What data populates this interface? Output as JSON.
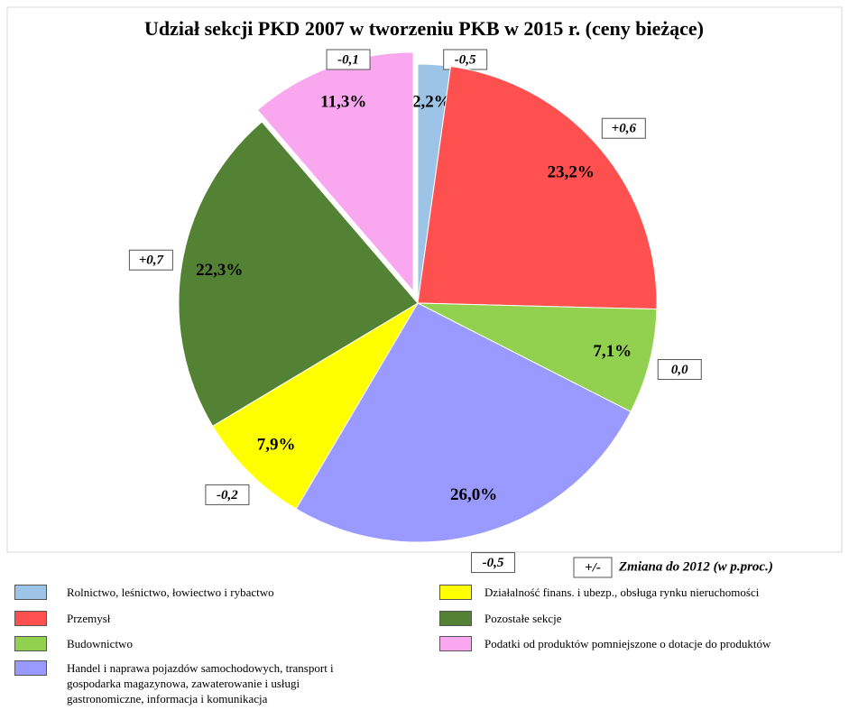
{
  "chart_data": {
    "type": "pie",
    "title": "Udział sekcji PKD 2007 w tworzeniu PKB w 2015 r. (ceny bieżące)",
    "categories": [
      "Rolnictwo, leśnictwo, łowiectwo i rybactwo",
      "Przemysł",
      "Budownictwo",
      "Handel i naprawa pojazdów samochodowych, transport i gospodarka magazynowa, zawaterowanie i usługi gastronomiczne, informacja i komunikacja",
      "Działalność finans. i ubezp., obsługa rynku nieruchomości",
      "Pozostałe sekcje",
      "Podatki od produktów pomniejszone o dotacje do produktów"
    ],
    "values": [
      2.2,
      23.2,
      7.1,
      26.0,
      7.9,
      22.3,
      11.3
    ],
    "value_labels": [
      "2,2%",
      "23,2%",
      "7,1%",
      "26,0%",
      "7,9%",
      "22,3%",
      "11,3%"
    ],
    "changes": [
      -0.5,
      0.6,
      0.0,
      -0.5,
      -0.2,
      0.7,
      -0.1
    ],
    "change_labels": [
      "-0,5",
      "+0,6",
      "0,0",
      "-0,5",
      "-0,2",
      "+0,7",
      "-0,1"
    ],
    "colors": [
      "#9dc3e6",
      "#ff5050",
      "#92d050",
      "#9999ff",
      "#ffff00",
      "#548235",
      "#f9a8f0"
    ],
    "exploded": [
      false,
      false,
      false,
      false,
      false,
      false,
      true
    ],
    "change_key": "+/-",
    "change_note": "Zmiana do 2012 (w p.proc.)"
  }
}
